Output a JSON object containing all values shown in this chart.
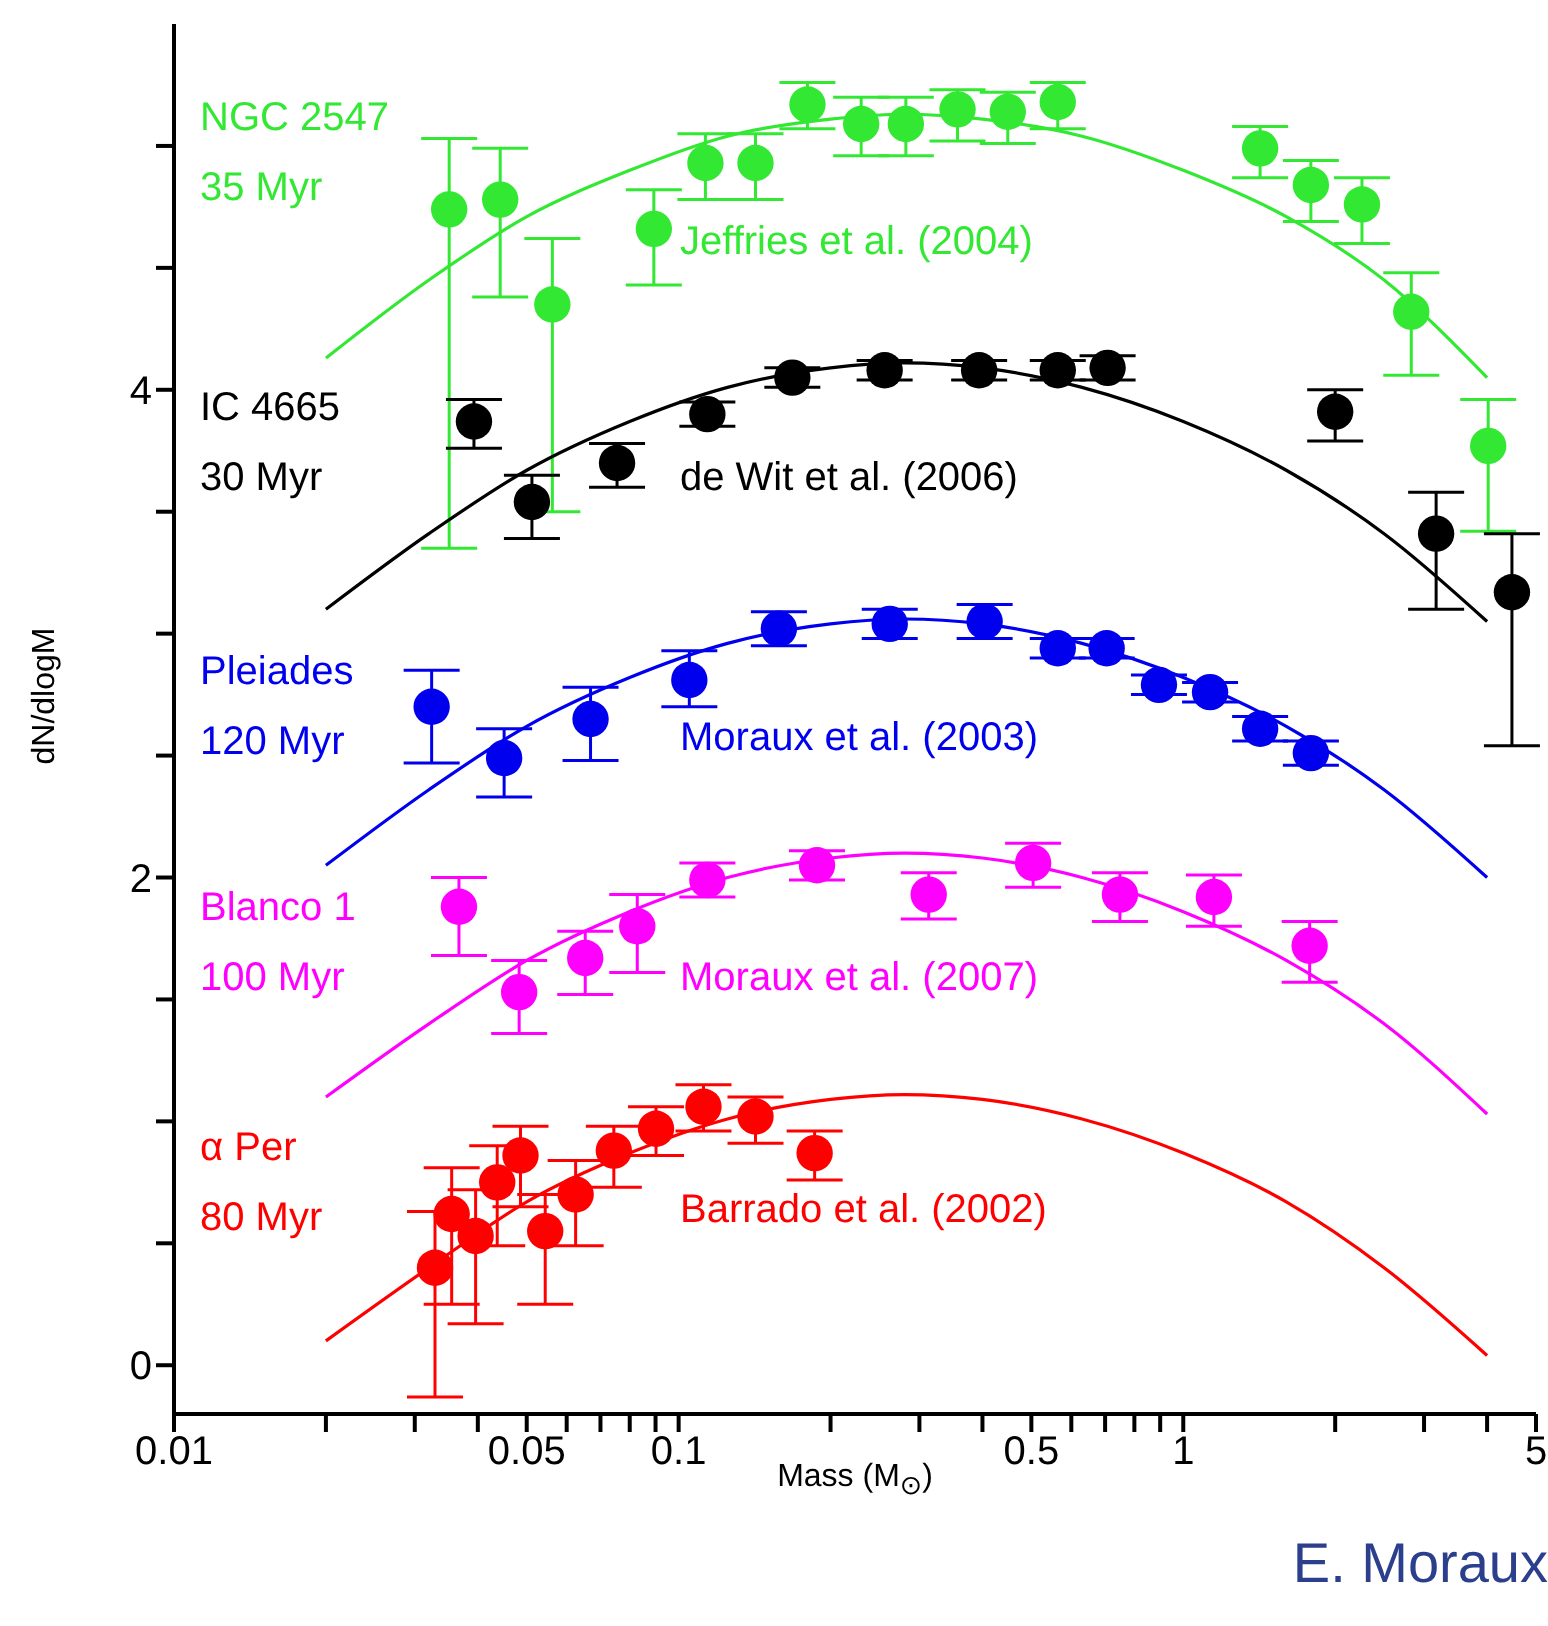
{
  "chart_data": {
    "type": "scatter",
    "xlabel": "Mass (M$_{⊙}$)",
    "ylabel": "dN/dlogM",
    "log": "x",
    "marker": "circle",
    "xlim": [
      0.01,
      5
    ],
    "ylim": [
      -0.2,
      5.5
    ],
    "xticks": [
      0.01,
      {
        "value": 0.02,
        "label": null
      },
      {
        "value": 0.03,
        "label": null
      },
      {
        "value": 0.04,
        "label": null
      },
      0.05,
      {
        "value": 0.06,
        "label": null
      },
      {
        "value": 0.07,
        "label": null
      },
      {
        "value": 0.08,
        "label": null
      },
      {
        "value": 0.09,
        "label": null
      },
      0.1,
      {
        "value": 0.2,
        "label": null
      },
      {
        "value": 0.3,
        "label": null
      },
      {
        "value": 0.4,
        "label": null
      },
      0.5,
      {
        "value": 0.6,
        "label": null
      },
      {
        "value": 0.7,
        "label": null
      },
      {
        "value": 0.8,
        "label": null
      },
      {
        "value": 0.9,
        "label": null
      },
      1,
      {
        "value": 2,
        "label": null
      },
      {
        "value": 3,
        "label": null
      },
      {
        "value": 4,
        "label": null
      },
      5
    ],
    "yticks": [
      0,
      {
        "value": 0.5,
        "label": null
      },
      {
        "value": 1,
        "label": null
      },
      {
        "value": 1.5,
        "label": null
      },
      2,
      {
        "value": 2.5,
        "label": null
      },
      {
        "value": 3,
        "label": null
      },
      {
        "value": 3.5,
        "label": null
      },
      4,
      {
        "value": 4.5,
        "label": null
      },
      {
        "value": 5,
        "label": null
      }
    ],
    "series": [
      {
        "name": "NGC 2547",
        "color": "#33e833",
        "x": [
          0.0351,
          0.0443,
          0.0562,
          0.0893,
          0.113,
          0.142,
          0.18,
          0.23,
          0.282,
          0.357,
          0.449,
          0.564,
          1.42,
          1.79,
          2.26,
          2.83,
          4.02
        ],
        "values": [
          4.74,
          4.78,
          4.35,
          4.66,
          4.93,
          4.93,
          5.17,
          5.09,
          5.09,
          5.15,
          5.14,
          5.18,
          4.99,
          4.84,
          4.76,
          4.32,
          3.77
        ],
        "errors": [
          [
            3.35,
            5.03
          ],
          [
            4.38,
            4.99
          ],
          [
            3.5,
            4.62
          ],
          [
            4.43,
            4.82
          ],
          [
            4.78,
            5.05
          ],
          [
            4.78,
            5.05
          ],
          [
            5.07,
            5.26
          ],
          [
            4.96,
            5.2
          ],
          [
            4.96,
            5.2
          ],
          [
            5.02,
            5.23
          ],
          [
            5.01,
            5.22
          ],
          [
            5.07,
            5.26
          ],
          [
            4.87,
            5.08
          ],
          [
            4.69,
            4.94
          ],
          [
            4.6,
            4.87
          ],
          [
            4.06,
            4.48
          ],
          [
            3.42,
            3.96
          ]
        ]
      },
      {
        "type": "line",
        "marker": "none",
        "color": "#33e833",
        "x": [
          0.02,
          0.032,
          0.05,
          0.08,
          0.125,
          0.2,
          0.28,
          0.4,
          0.63,
          1,
          1.6,
          2.5,
          4
        ],
        "values": [
          4.13,
          4.45,
          4.71,
          4.9,
          5.04,
          5.11,
          5.13,
          5.11,
          5.04,
          4.9,
          4.71,
          4.45,
          4.05
        ]
      },
      {
        "name": "IC 4665",
        "color": "#000000",
        "x": [
          0.0393,
          0.0512,
          0.0755,
          0.114,
          0.168,
          0.256,
          0.394,
          0.564,
          0.708,
          2.0,
          3.17,
          4.48
        ],
        "values": [
          3.87,
          3.54,
          3.7,
          3.9,
          4.05,
          4.08,
          4.08,
          4.08,
          4.09,
          3.91,
          3.41,
          3.17
        ],
        "errors": [
          [
            3.76,
            3.96
          ],
          [
            3.39,
            3.65
          ],
          [
            3.6,
            3.78
          ],
          [
            3.85,
            3.95
          ],
          0.04,
          0.04,
          0.04,
          0.04,
          0.05,
          [
            3.79,
            4.0
          ],
          [
            3.1,
            3.58
          ],
          [
            2.54,
            3.41
          ]
        ]
      },
      {
        "type": "line",
        "marker": "none",
        "color": "#000000",
        "x": [
          0.02,
          0.032,
          0.05,
          0.08,
          0.125,
          0.2,
          0.28,
          0.4,
          0.63,
          1,
          1.6,
          2.5,
          4
        ],
        "values": [
          3.1,
          3.41,
          3.67,
          3.87,
          4.01,
          4.09,
          4.11,
          4.09,
          4.01,
          3.87,
          3.67,
          3.41,
          3.05
        ]
      },
      {
        "name": "Pleiades",
        "color": "#0000ee",
        "x": [
          0.0324,
          0.0451,
          0.0669,
          0.105,
          0.158,
          0.262,
          0.404,
          0.564,
          0.705,
          0.895,
          1.13,
          1.42,
          1.79
        ],
        "values": [
          2.7,
          2.49,
          2.65,
          2.81,
          3.02,
          3.04,
          3.05,
          2.94,
          2.94,
          2.79,
          2.76,
          2.61,
          2.51
        ],
        "errors": [
          [
            2.47,
            2.85
          ],
          [
            2.33,
            2.61
          ],
          [
            2.48,
            2.78
          ],
          [
            2.7,
            2.93
          ],
          0.07,
          0.06,
          0.07,
          0.04,
          0.04,
          0.04,
          0.04,
          0.05,
          0.05
        ]
      },
      {
        "type": "line",
        "marker": "none",
        "color": "#0000ee",
        "x": [
          0.02,
          0.032,
          0.05,
          0.08,
          0.125,
          0.2,
          0.28,
          0.4,
          0.63,
          1,
          1.6,
          2.5,
          4
        ],
        "values": [
          2.05,
          2.36,
          2.62,
          2.82,
          2.96,
          3.04,
          3.06,
          3.04,
          2.96,
          2.82,
          2.62,
          2.36,
          2.0
        ]
      },
      {
        "name": "Blanco 1",
        "color": "#ff00ff",
        "x": [
          0.0367,
          0.0483,
          0.0653,
          0.0828,
          0.114,
          0.188,
          0.313,
          0.504,
          0.749,
          1.15,
          1.78
        ],
        "values": [
          1.88,
          1.53,
          1.67,
          1.8,
          1.99,
          2.05,
          1.93,
          2.06,
          1.93,
          1.92,
          1.72
        ],
        "errors": [
          [
            1.68,
            2.0
          ],
          [
            1.36,
            1.66
          ],
          [
            1.52,
            1.78
          ],
          [
            1.61,
            1.93
          ],
          0.07,
          0.06,
          [
            1.83,
            2.02
          ],
          [
            1.96,
            2.14
          ],
          [
            1.82,
            2.02
          ],
          [
            1.8,
            2.01
          ],
          [
            1.57,
            1.82
          ]
        ]
      },
      {
        "type": "line",
        "marker": "none",
        "color": "#ff00ff",
        "x": [
          0.02,
          0.032,
          0.05,
          0.08,
          0.125,
          0.2,
          0.28,
          0.4,
          0.63,
          1,
          1.6,
          2.5,
          4
        ],
        "values": [
          1.1,
          1.4,
          1.66,
          1.86,
          2.0,
          2.08,
          2.1,
          2.08,
          2.0,
          1.86,
          1.66,
          1.4,
          1.03
        ]
      },
      {
        "name": "α Per",
        "color": "#ff0000",
        "x": [
          0.0329,
          0.0355,
          0.0396,
          0.0437,
          0.0486,
          0.0544,
          0.0625,
          0.0744,
          0.0902,
          0.112,
          0.142,
          0.186
        ],
        "values": [
          0.4,
          0.62,
          0.53,
          0.75,
          0.86,
          0.55,
          0.7,
          0.88,
          0.97,
          1.06,
          1.02,
          0.87
        ],
        "errors": [
          [
            -0.13,
            0.63
          ],
          [
            0.25,
            0.81
          ],
          [
            0.17,
            0.72
          ],
          [
            0.49,
            0.9
          ],
          [
            0.65,
            0.98
          ],
          [
            0.25,
            0.7
          ],
          [
            0.49,
            0.84
          ],
          [
            0.73,
            0.98
          ],
          [
            0.86,
            1.06
          ],
          [
            0.96,
            1.15
          ],
          [
            0.91,
            1.1
          ],
          [
            0.76,
            0.96
          ]
        ]
      },
      {
        "type": "line",
        "marker": "none",
        "color": "#ff0000",
        "x": [
          0.02,
          0.032,
          0.05,
          0.08,
          0.125,
          0.2,
          0.28,
          0.4,
          0.63,
          1,
          1.6,
          2.5,
          4
        ],
        "values": [
          0.1,
          0.4,
          0.67,
          0.87,
          1.01,
          1.09,
          1.11,
          1.09,
          1.01,
          0.87,
          0.67,
          0.4,
          0.04
        ]
      }
    ],
    "annotations": [
      "35 Myr",
      "Jeffries et al. (2004)",
      "30 Myr",
      "de Wit et al. (2006)",
      "120 Myr",
      "Moraux et al. (2003)",
      "100 Myr",
      "Moraux et al. (2007)",
      "80 Myr",
      "Barrado et al. (2002)",
      "E. Moraux"
    ]
  }
}
